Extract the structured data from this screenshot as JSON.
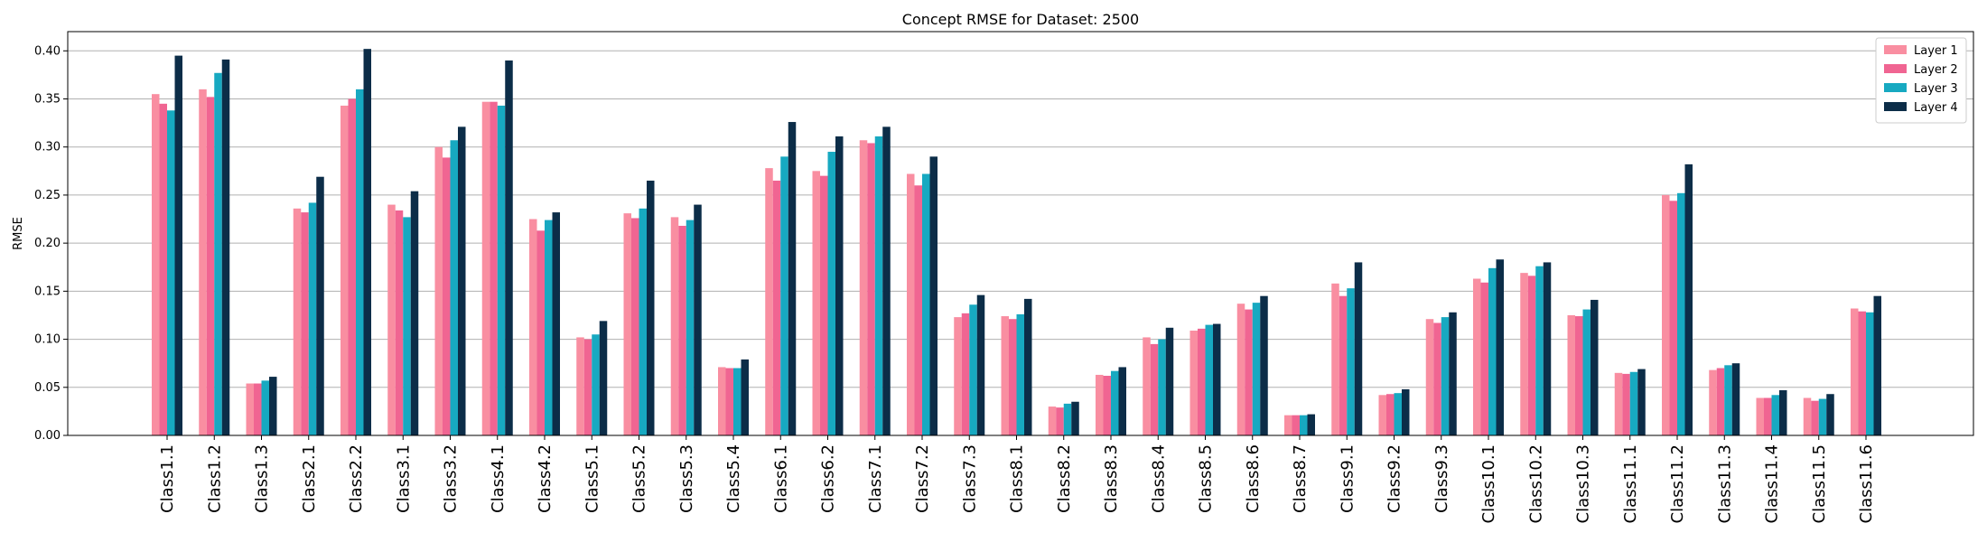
{
  "chart_data": {
    "type": "bar",
    "title": "Concept RMSE for Dataset: 2500",
    "xlabel": "",
    "ylabel": "RMSE",
    "ylim": [
      0,
      0.42
    ],
    "yticks": [
      "0.00",
      "0.05",
      "0.10",
      "0.15",
      "0.20",
      "0.25",
      "0.30",
      "0.35",
      "0.40"
    ],
    "grid": "horizontal",
    "legend_position": "top-right",
    "categories": [
      "Class1.1",
      "Class1.2",
      "Class1.3",
      "Class2.1",
      "Class2.2",
      "Class3.1",
      "Class3.2",
      "Class4.1",
      "Class4.2",
      "Class5.1",
      "Class5.2",
      "Class5.3",
      "Class5.4",
      "Class6.1",
      "Class6.2",
      "Class7.1",
      "Class7.2",
      "Class7.3",
      "Class8.1",
      "Class8.2",
      "Class8.3",
      "Class8.4",
      "Class8.5",
      "Class8.6",
      "Class8.7",
      "Class9.1",
      "Class9.2",
      "Class9.3",
      "Class10.1",
      "Class10.2",
      "Class10.3",
      "Class11.1",
      "Class11.2",
      "Class11.3",
      "Class11.4",
      "Class11.5",
      "Class11.6"
    ],
    "series": [
      {
        "name": "Layer 1",
        "color": "#f98ea1",
        "values": [
          0.355,
          0.36,
          0.054,
          0.236,
          0.343,
          0.24,
          0.3,
          0.347,
          0.225,
          0.102,
          0.231,
          0.227,
          0.071,
          0.278,
          0.275,
          0.307,
          0.272,
          0.123,
          0.124,
          0.03,
          0.063,
          0.102,
          0.109,
          0.137,
          0.021,
          0.158,
          0.042,
          0.121,
          0.163,
          0.169,
          0.125,
          0.065,
          0.25,
          0.068,
          0.039,
          0.039,
          0.132
        ]
      },
      {
        "name": "Layer 2",
        "color": "#f06592",
        "values": [
          0.345,
          0.352,
          0.054,
          0.232,
          0.35,
          0.234,
          0.289,
          0.347,
          0.213,
          0.1,
          0.226,
          0.218,
          0.07,
          0.265,
          0.27,
          0.304,
          0.26,
          0.127,
          0.121,
          0.029,
          0.062,
          0.095,
          0.111,
          0.131,
          0.021,
          0.145,
          0.043,
          0.117,
          0.159,
          0.166,
          0.124,
          0.064,
          0.244,
          0.07,
          0.039,
          0.036,
          0.129
        ]
      },
      {
        "name": "Layer 3",
        "color": "#17a9c1",
        "values": [
          0.338,
          0.377,
          0.057,
          0.242,
          0.36,
          0.227,
          0.307,
          0.343,
          0.224,
          0.105,
          0.236,
          0.224,
          0.07,
          0.29,
          0.295,
          0.311,
          0.272,
          0.136,
          0.126,
          0.033,
          0.067,
          0.1,
          0.115,
          0.138,
          0.021,
          0.153,
          0.044,
          0.123,
          0.174,
          0.176,
          0.131,
          0.066,
          0.252,
          0.073,
          0.042,
          0.038,
          0.128
        ]
      },
      {
        "name": "Layer 4",
        "color": "#0c2d48",
        "values": [
          0.395,
          0.391,
          0.061,
          0.269,
          0.402,
          0.254,
          0.321,
          0.39,
          0.232,
          0.119,
          0.265,
          0.24,
          0.079,
          0.326,
          0.311,
          0.321,
          0.29,
          0.146,
          0.142,
          0.035,
          0.071,
          0.112,
          0.116,
          0.145,
          0.022,
          0.18,
          0.048,
          0.128,
          0.183,
          0.18,
          0.141,
          0.069,
          0.282,
          0.075,
          0.047,
          0.043,
          0.145
        ]
      }
    ]
  }
}
